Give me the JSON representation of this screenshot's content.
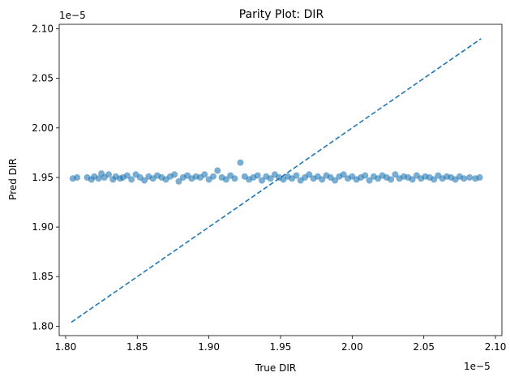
{
  "chart_data": {
    "type": "scatter",
    "title": "Parity Plot: DIR",
    "xlabel": "True DIR",
    "ylabel": "Pred DIR",
    "x_offset_text": "1e−5",
    "y_offset_text": "1e−5",
    "xlim": [
      1.7955,
      2.1045
    ],
    "ylim": [
      1.7905,
      2.1045
    ],
    "x_ticks": [
      "1.80",
      "1.85",
      "1.90",
      "1.95",
      "2.00",
      "2.05",
      "2.10"
    ],
    "y_ticks": [
      "1.80",
      "1.85",
      "1.90",
      "1.95",
      "2.00",
      "2.05",
      "2.10"
    ],
    "grid": false,
    "series": [
      {
        "type": "scatter",
        "color": "#1f77b4",
        "alpha": 0.6,
        "points": [
          [
            1.805,
            1.949
          ],
          [
            1.808,
            1.95
          ],
          [
            1.815,
            1.95
          ],
          [
            1.818,
            1.948
          ],
          [
            1.82,
            1.951
          ],
          [
            1.823,
            1.949
          ],
          [
            1.825,
            1.954
          ],
          [
            1.827,
            1.95
          ],
          [
            1.83,
            1.953
          ],
          [
            1.833,
            1.948
          ],
          [
            1.835,
            1.951
          ],
          [
            1.838,
            1.949
          ],
          [
            1.84,
            1.95
          ],
          [
            1.843,
            1.952
          ],
          [
            1.846,
            1.948
          ],
          [
            1.849,
            1.953
          ],
          [
            1.852,
            1.95
          ],
          [
            1.855,
            1.947
          ],
          [
            1.858,
            1.951
          ],
          [
            1.861,
            1.949
          ],
          [
            1.864,
            1.952
          ],
          [
            1.867,
            1.95
          ],
          [
            1.87,
            1.948
          ],
          [
            1.873,
            1.951
          ],
          [
            1.876,
            1.953
          ],
          [
            1.879,
            1.946
          ],
          [
            1.882,
            1.95
          ],
          [
            1.885,
            1.952
          ],
          [
            1.888,
            1.949
          ],
          [
            1.891,
            1.951
          ],
          [
            1.894,
            1.95
          ],
          [
            1.897,
            1.953
          ],
          [
            1.9,
            1.948
          ],
          [
            1.903,
            1.951
          ],
          [
            1.906,
            1.957
          ],
          [
            1.909,
            1.95
          ],
          [
            1.912,
            1.948
          ],
          [
            1.915,
            1.952
          ],
          [
            1.918,
            1.949
          ],
          [
            1.922,
            1.965
          ],
          [
            1.925,
            1.951
          ],
          [
            1.928,
            1.948
          ],
          [
            1.931,
            1.95
          ],
          [
            1.934,
            1.952
          ],
          [
            1.937,
            1.947
          ],
          [
            1.94,
            1.951
          ],
          [
            1.943,
            1.949
          ],
          [
            1.946,
            1.953
          ],
          [
            1.949,
            1.95
          ],
          [
            1.952,
            1.948
          ],
          [
            1.955,
            1.951
          ],
          [
            1.958,
            1.949
          ],
          [
            1.961,
            1.952
          ],
          [
            1.964,
            1.947
          ],
          [
            1.967,
            1.95
          ],
          [
            1.97,
            1.953
          ],
          [
            1.973,
            1.949
          ],
          [
            1.976,
            1.951
          ],
          [
            1.979,
            1.948
          ],
          [
            1.982,
            1.952
          ],
          [
            1.985,
            1.95
          ],
          [
            1.988,
            1.947
          ],
          [
            1.991,
            1.951
          ],
          [
            1.994,
            1.953
          ],
          [
            1.997,
            1.949
          ],
          [
            2.0,
            1.951
          ],
          [
            2.003,
            1.948
          ],
          [
            2.006,
            1.95
          ],
          [
            2.009,
            1.952
          ],
          [
            2.012,
            1.947
          ],
          [
            2.015,
            1.951
          ],
          [
            2.018,
            1.949
          ],
          [
            2.021,
            1.952
          ],
          [
            2.024,
            1.95
          ],
          [
            2.027,
            1.948
          ],
          [
            2.03,
            1.953
          ],
          [
            2.033,
            1.949
          ],
          [
            2.036,
            1.951
          ],
          [
            2.039,
            1.95
          ],
          [
            2.042,
            1.948
          ],
          [
            2.045,
            1.952
          ],
          [
            2.048,
            1.949
          ],
          [
            2.051,
            1.951
          ],
          [
            2.054,
            1.95
          ],
          [
            2.057,
            1.948
          ],
          [
            2.06,
            1.952
          ],
          [
            2.063,
            1.949
          ],
          [
            2.066,
            1.951
          ],
          [
            2.069,
            1.95
          ],
          [
            2.072,
            1.948
          ],
          [
            2.075,
            1.951
          ],
          [
            2.078,
            1.949
          ],
          [
            2.082,
            1.95
          ],
          [
            2.086,
            1.949
          ],
          [
            2.089,
            1.95
          ]
        ]
      },
      {
        "type": "line",
        "style": "dashed",
        "color": "#1f77b4",
        "points": [
          [
            1.804,
            1.804
          ],
          [
            2.09,
            2.09
          ]
        ]
      }
    ]
  }
}
